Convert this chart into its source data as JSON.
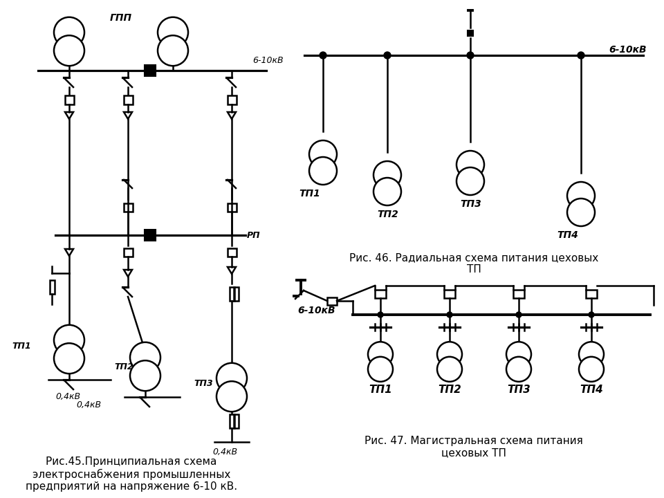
{
  "bg_color": "#ffffff",
  "line_color": "#000000",
  "fig46_caption": "Рис. 46. Радиальная схема питания цеховых\nТП",
  "fig47_caption": "Рис. 47. Магистральная схема питания\nцеховых ТП",
  "fig45_caption": "Рис.45.Принципиальная схема\nэлектроснабжения промышленных\nпредприятий на напряжение 6-10 кВ.",
  "label_610kV_46": "6-10кВ",
  "label_610kV_47": "6-10кВ",
  "label_610kV_45": "6-10кВ",
  "label_gpp": "ГПП",
  "label_rp": "РП",
  "tp_labels_46": [
    "ТП1",
    "ТП2",
    "ТП3",
    "ТП4"
  ],
  "tp_labels_47": [
    "ТП1",
    "ТП2",
    "ТП3",
    "ТП4"
  ],
  "tp_labels_45": [
    "ТП1",
    "ТП2",
    "ТП3"
  ],
  "label_04kV_1": "0,4кВ",
  "label_04kV_2": "0,4кВ"
}
